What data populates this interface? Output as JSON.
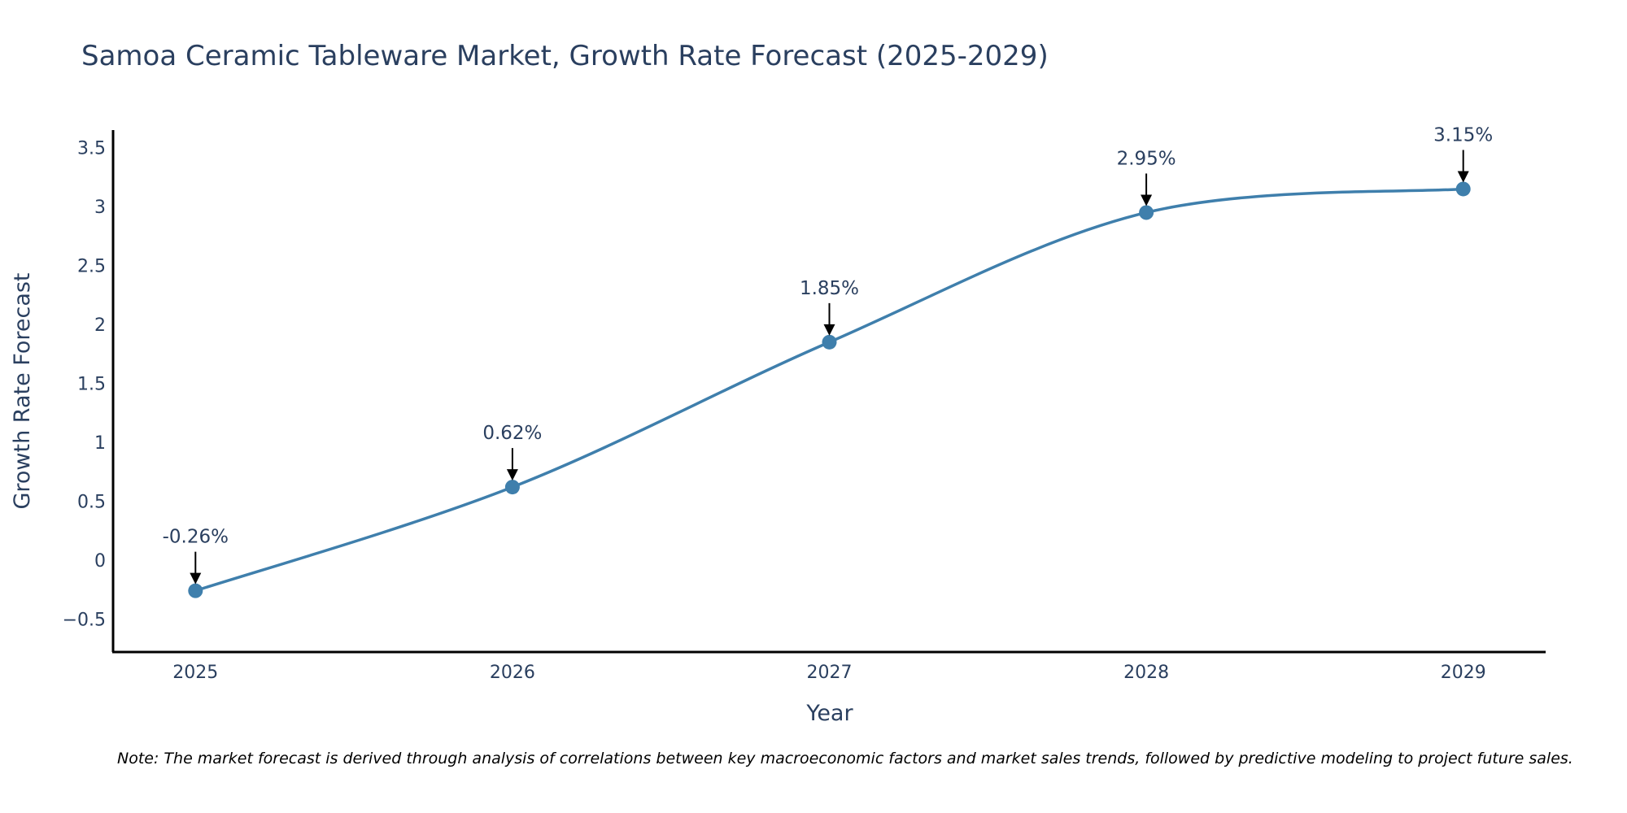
{
  "chart_data": {
    "type": "line",
    "title": "Samoa Ceramic Tableware Market, Growth Rate Forecast (2025-2029)",
    "xlabel": "Year",
    "ylabel": "Growth Rate Forecast",
    "x": [
      "2025",
      "2026",
      "2027",
      "2028",
      "2029"
    ],
    "values": [
      -0.26,
      0.62,
      1.85,
      2.95,
      3.15
    ],
    "data_labels": [
      "-0.26%",
      "0.62%",
      "1.85%",
      "2.95%",
      "3.15%"
    ],
    "ylim": [
      -0.78,
      3.65
    ],
    "xlim": [
      -0.26,
      4.26
    ],
    "yticks": [
      -0.5,
      0,
      0.5,
      1,
      1.5,
      2,
      2.5,
      3,
      3.5
    ],
    "ytick_labels": [
      "−0.5",
      "0",
      "0.5",
      "1",
      "1.5",
      "2",
      "2.5",
      "3",
      "3.5"
    ],
    "grid": false,
    "line_color": "#3f7fac",
    "marker_color": "#3f7fac",
    "note": "Note: The market forecast is derived through analysis of correlations between key macroeconomic factors and market sales trends, followed by predictive modeling to project future sales."
  }
}
